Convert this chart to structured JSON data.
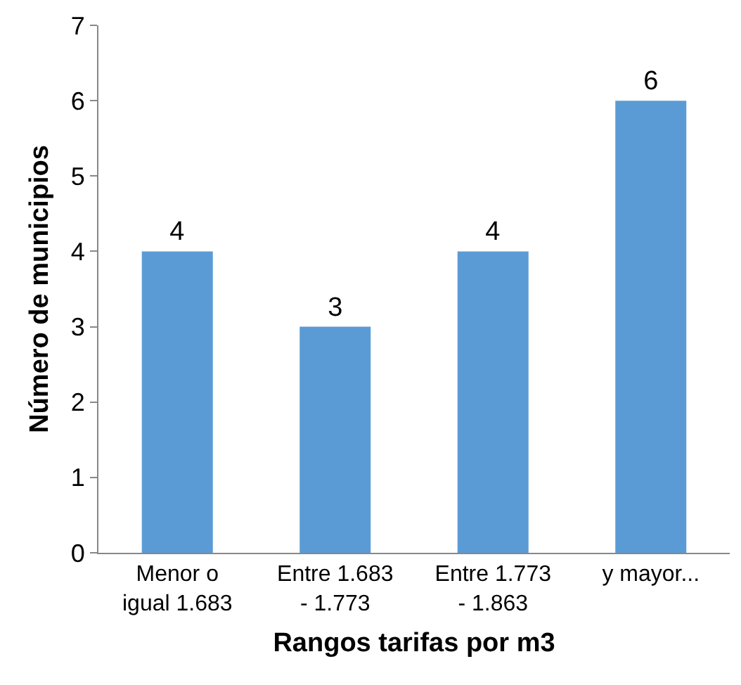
{
  "chart_data": {
    "type": "bar",
    "xlabel": "Rangos tarifas por m3",
    "ylabel": "Número de municipios",
    "categories": [
      "Menor o\nigual 1.683",
      "Entre 1.683\n- 1.773",
      "Entre 1.773\n- 1.863",
      "y mayor..."
    ],
    "values": [
      4,
      3,
      4,
      6
    ],
    "color": "#5b9bd5",
    "ylim": [
      0,
      7
    ],
    "yticks": [
      0,
      1,
      2,
      3,
      4,
      5,
      6,
      7
    ],
    "grid": false,
    "legend": false,
    "data_labels": true
  }
}
